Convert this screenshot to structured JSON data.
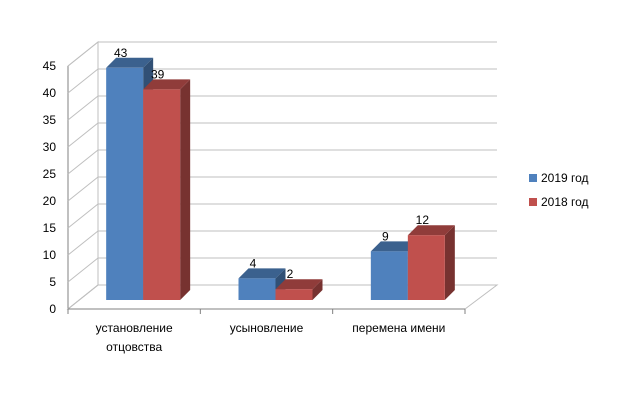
{
  "chart_data": {
    "type": "bar",
    "categories": [
      "установление отцовства",
      "усыновление",
      "перемена имени"
    ],
    "category_lines": [
      [
        "установление",
        "отцовства"
      ],
      [
        "усыновление"
      ],
      [
        "перемена имени"
      ]
    ],
    "series": [
      {
        "name": "2019 год",
        "values": [
          43,
          4,
          9
        ],
        "color": "#4f81bd"
      },
      {
        "name": "2018 год",
        "values": [
          39,
          2,
          12
        ],
        "color": "#c0504d"
      }
    ],
    "ylim": [
      0,
      45
    ],
    "yticks": [
      0,
      5,
      10,
      15,
      20,
      25,
      30,
      35,
      40,
      45
    ],
    "grid": true,
    "data_labels": true,
    "legend_position": "right",
    "style": "3d-clustered-column",
    "title": "",
    "xlabel": "",
    "ylabel": ""
  }
}
